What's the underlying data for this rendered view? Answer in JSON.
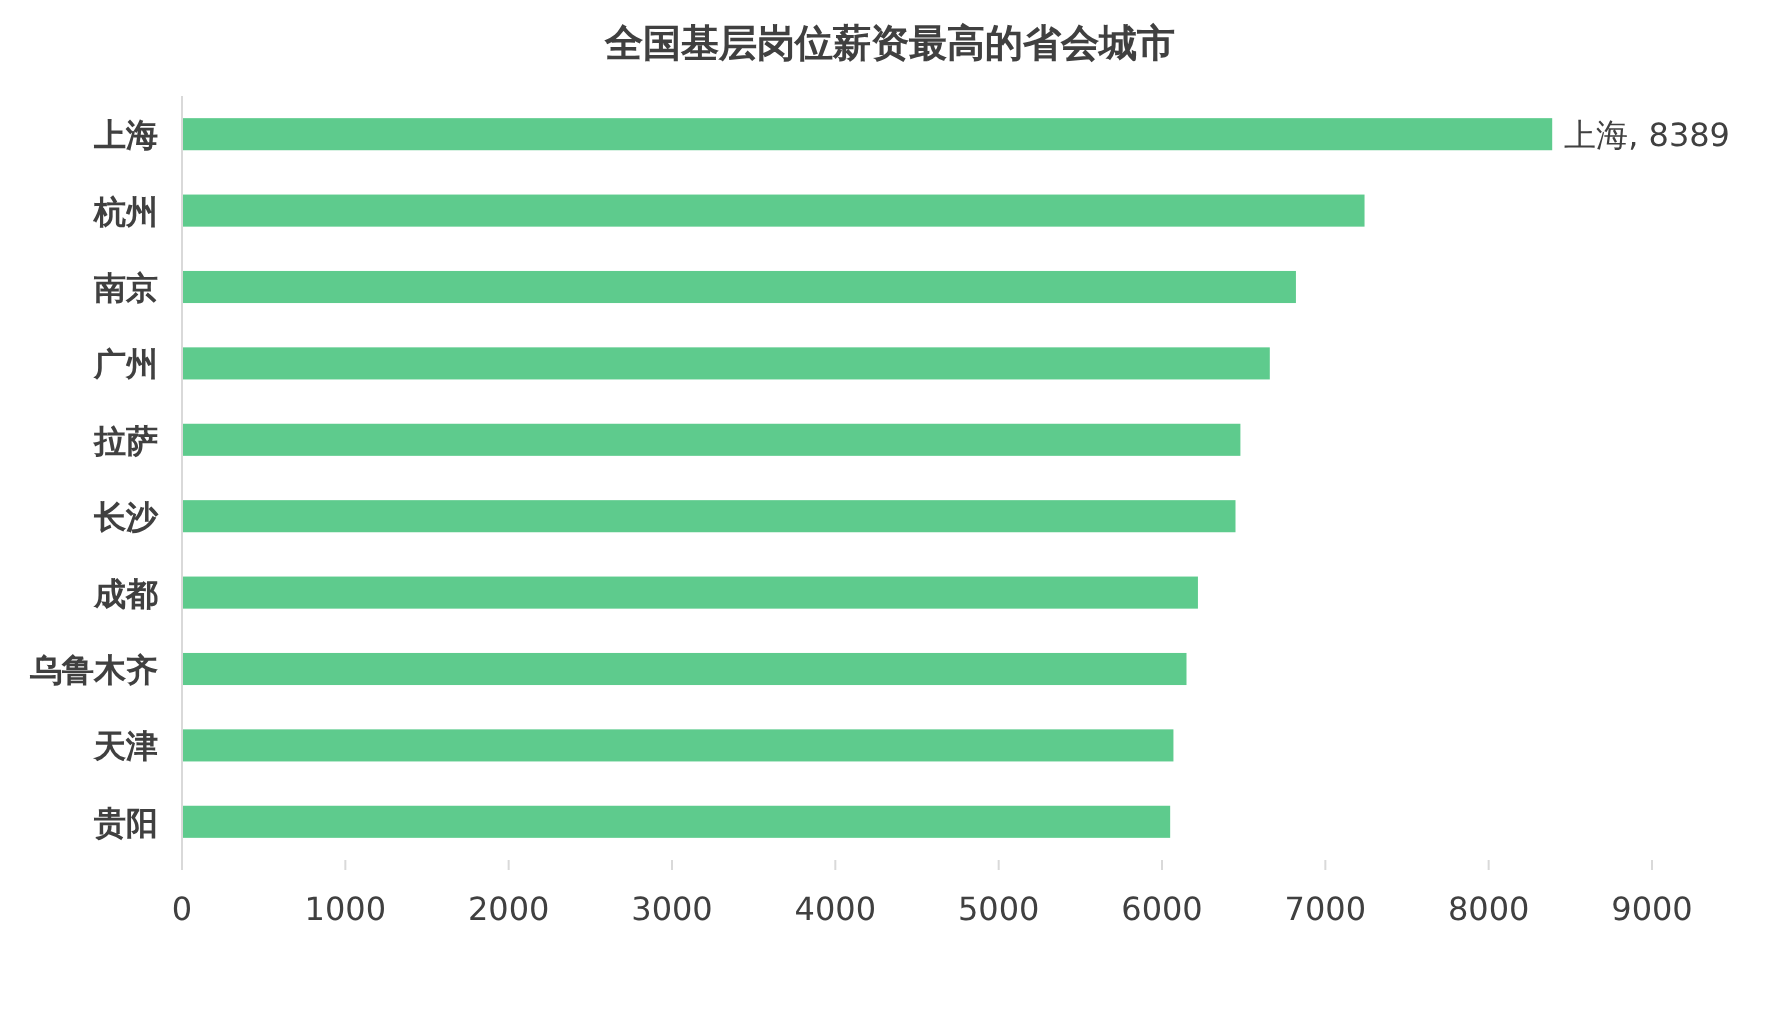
{
  "chart_data": {
    "type": "bar",
    "orientation": "horizontal",
    "title": "全国基层岗位薪资最高的省会城市",
    "categories": [
      "上海",
      "杭州",
      "南京",
      "广州",
      "拉萨",
      "长沙",
      "成都",
      "乌鲁木齐",
      "天津",
      "贵阳"
    ],
    "values": [
      8389,
      7240,
      6820,
      6660,
      6480,
      6450,
      6220,
      6150,
      6070,
      6050
    ],
    "value_labels": [
      "上海, 8389",
      null,
      null,
      null,
      null,
      null,
      null,
      null,
      null,
      null
    ],
    "color": "#5ecb8d",
    "xlim": [
      0,
      9000
    ],
    "xticks": [
      0,
      1000,
      2000,
      3000,
      4000,
      5000,
      6000,
      7000,
      8000,
      9000
    ]
  }
}
